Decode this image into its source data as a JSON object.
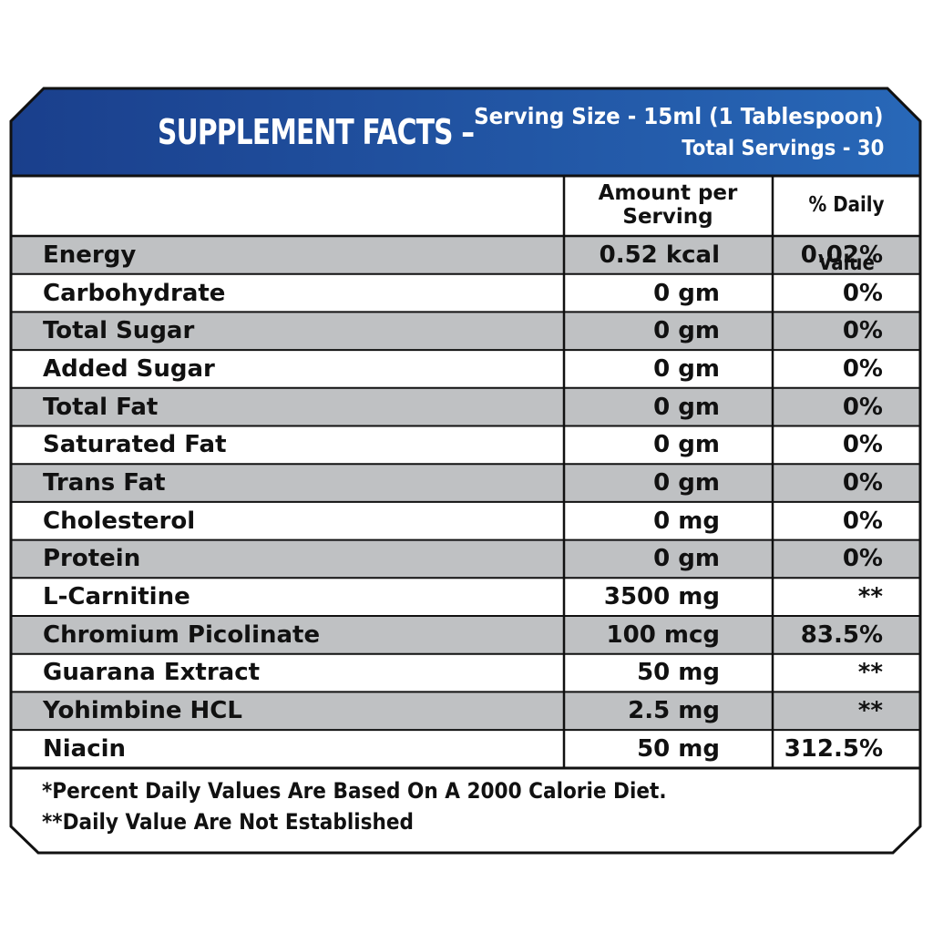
{
  "header": {
    "title": "SUPPLEMENT FACTS –",
    "serving_size": "Serving Size - 15ml (1 Tablespoon)",
    "total_servings": "Total Servings - 30",
    "gradient_start": "#1a3f8c",
    "gradient_end": "#2868b8"
  },
  "table": {
    "columns": {
      "amount_line1": "Amount per",
      "amount_line2": "Serving",
      "daily_value": "% Daily Value"
    },
    "rows": [
      {
        "name": "Energy",
        "amount": "0.52 kcal",
        "dv": "0.02%"
      },
      {
        "name": "Carbohydrate",
        "amount": "0 gm",
        "dv": "0%"
      },
      {
        "name": "Total Sugar",
        "amount": "0 gm",
        "dv": "0%"
      },
      {
        "name": "Added Sugar",
        "amount": "0 gm",
        "dv": "0%"
      },
      {
        "name": "Total Fat",
        "amount": "0 gm",
        "dv": "0%"
      },
      {
        "name": "Saturated Fat",
        "amount": "0 gm",
        "dv": "0%"
      },
      {
        "name": "Trans Fat",
        "amount": "0 gm",
        "dv": "0%"
      },
      {
        "name": "Cholesterol",
        "amount": "0 mg",
        "dv": "0%"
      },
      {
        "name": "Protein",
        "amount": "0 gm",
        "dv": "0%"
      },
      {
        "name": "L-Carnitine",
        "amount": "3500 mg",
        "dv": "**"
      },
      {
        "name": "Chromium Picolinate",
        "amount": "100 mcg",
        "dv": "83.5%"
      },
      {
        "name": "Guarana Extract",
        "amount": "50 mg",
        "dv": "**"
      },
      {
        "name": "Yohimbine HCL",
        "amount": "2.5 mg",
        "dv": "**"
      },
      {
        "name": "Niacin",
        "amount": "50 mg",
        "dv": "312.5%"
      }
    ],
    "stripe_color": "#bfc1c3"
  },
  "footnotes": {
    "line1": "*Percent Daily Values Are Based On A 2000 Calorie Diet.",
    "line2": "**Daily Value Are Not Established"
  }
}
